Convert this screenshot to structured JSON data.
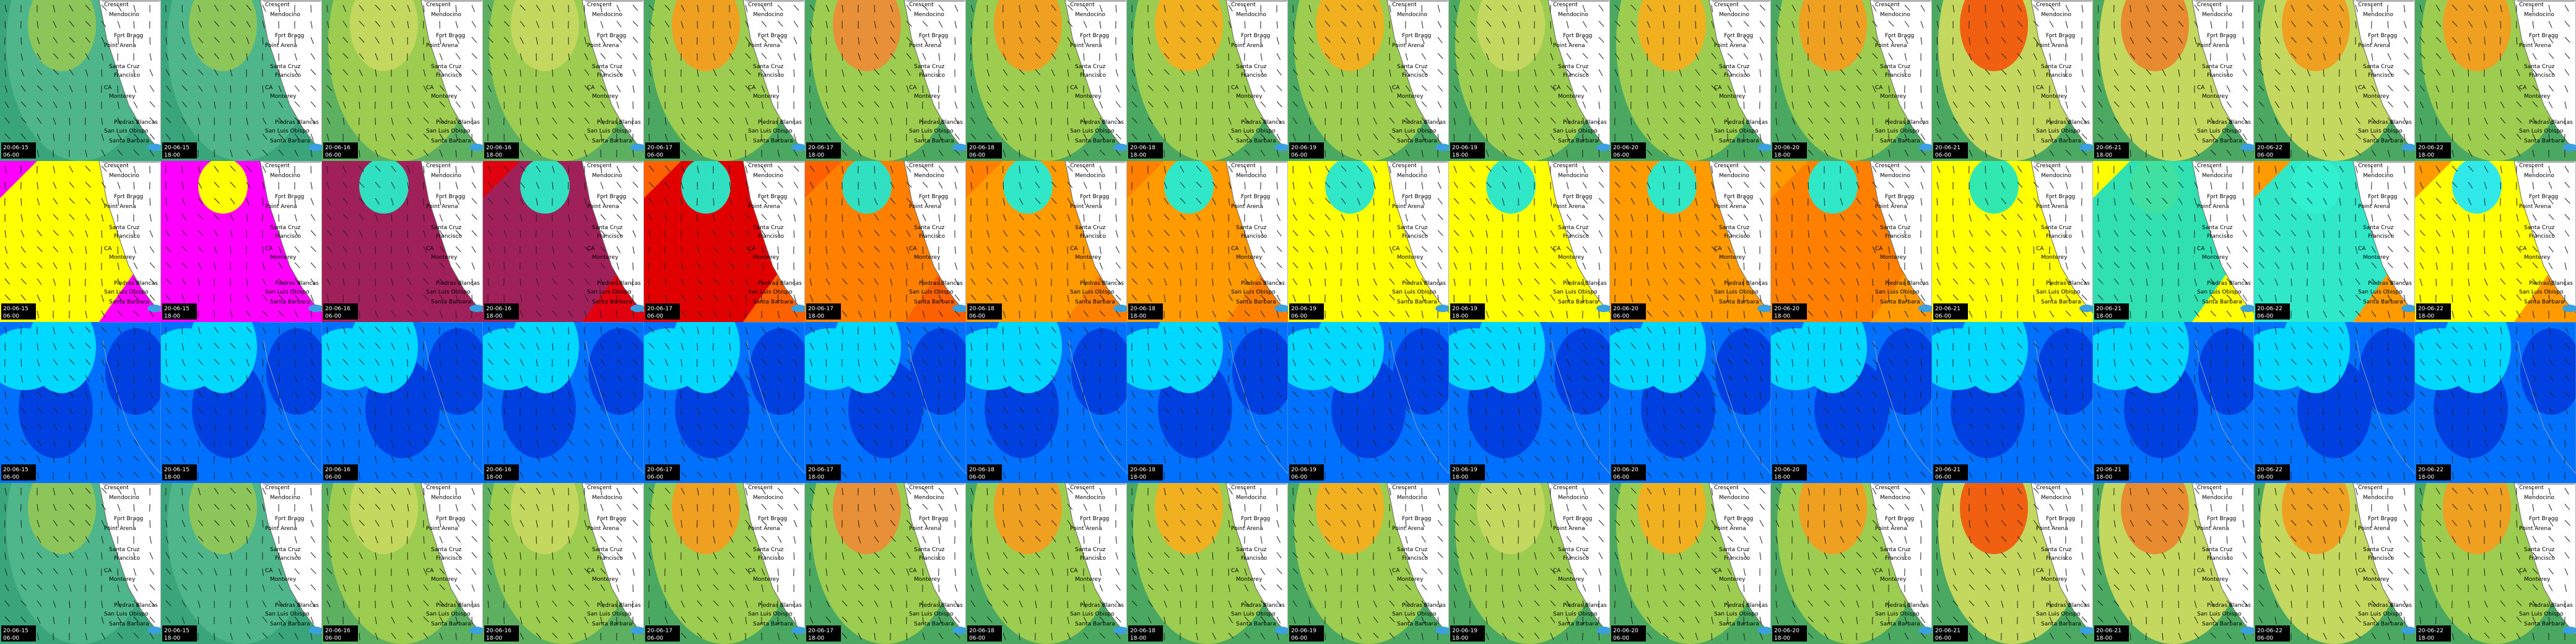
{
  "tiles": [
    {
      "date": "20-06-15",
      "time": "06-00"
    },
    {
      "date": "20-06-15",
      "time": "18-00"
    },
    {
      "date": "20-06-16",
      "time": "06-00"
    },
    {
      "date": "20-06-16",
      "time": "18-00"
    },
    {
      "date": "20-06-17",
      "time": "06-00"
    },
    {
      "date": "20-06-17",
      "time": "18-00"
    },
    {
      "date": "20-06-18",
      "time": "06-00"
    },
    {
      "date": "20-06-18",
      "time": "18-00"
    },
    {
      "date": "20-06-19",
      "time": "06-00"
    },
    {
      "date": "20-06-19",
      "time": "18-00"
    },
    {
      "date": "20-06-20",
      "time": "06-00"
    },
    {
      "date": "20-06-20",
      "time": "18-00"
    },
    {
      "date": "20-06-21",
      "time": "06-00"
    },
    {
      "date": "20-06-21",
      "time": "18-00"
    },
    {
      "date": "20-06-22",
      "time": "06-00"
    },
    {
      "date": "20-06-22",
      "time": "18-00"
    }
  ],
  "places": [
    "Crescent",
    "Mendocino",
    "Fort Bragg",
    "Point Arena",
    "Santa Cruz",
    "Francisco",
    "CA",
    "Monterey",
    "Piedras Blancas",
    "San Luis Obispo",
    "Santa Barbara"
  ]
}
